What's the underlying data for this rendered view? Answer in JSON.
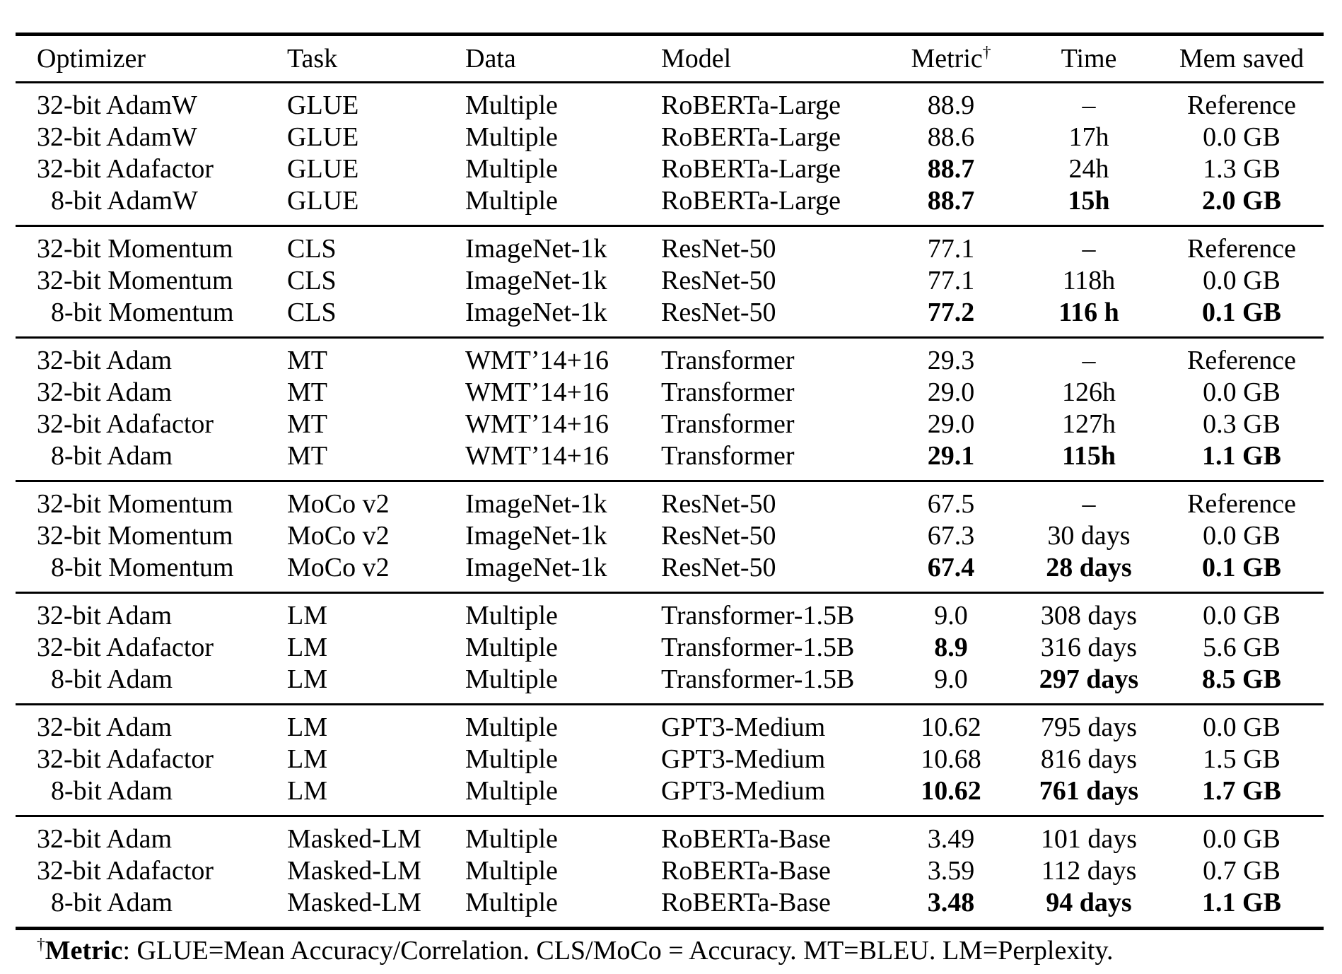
{
  "colors": {
    "text": "#000000",
    "background": "#ffffff",
    "rule": "#000000"
  },
  "table": {
    "columns": [
      {
        "label": "Optimizer"
      },
      {
        "label": "Task"
      },
      {
        "label": "Data"
      },
      {
        "label": "Model"
      },
      {
        "label": "Metric",
        "sup": "†"
      },
      {
        "label": "Time"
      },
      {
        "label": "Mem saved"
      }
    ],
    "groups": [
      {
        "rows": [
          {
            "cells": [
              "32-bit AdamW",
              "GLUE",
              "Multiple",
              "RoBERTa-Large",
              "88.9",
              "–",
              "Reference"
            ],
            "bold": []
          },
          {
            "cells": [
              "32-bit AdamW",
              "GLUE",
              "Multiple",
              "RoBERTa-Large",
              "88.6",
              "17h",
              "0.0 GB"
            ],
            "bold": []
          },
          {
            "cells": [
              "32-bit Adafactor",
              "GLUE",
              "Multiple",
              "RoBERTa-Large",
              "88.7",
              "24h",
              "1.3 GB"
            ],
            "bold": [
              4
            ]
          },
          {
            "cells": [
              "8-bit AdamW",
              "GLUE",
              "Multiple",
              "RoBERTa-Large",
              "88.7",
              "15h",
              "2.0 GB"
            ],
            "bold": [
              4,
              5,
              6
            ]
          }
        ]
      },
      {
        "rows": [
          {
            "cells": [
              "32-bit Momentum",
              "CLS",
              "ImageNet-1k",
              "ResNet-50",
              "77.1",
              "–",
              "Reference"
            ],
            "bold": []
          },
          {
            "cells": [
              "32-bit Momentum",
              "CLS",
              "ImageNet-1k",
              "ResNet-50",
              "77.1",
              "118h",
              "0.0 GB"
            ],
            "bold": []
          },
          {
            "cells": [
              "8-bit Momentum",
              "CLS",
              "ImageNet-1k",
              "ResNet-50",
              "77.2",
              "116 h",
              "0.1 GB"
            ],
            "bold": [
              4,
              5,
              6
            ]
          }
        ]
      },
      {
        "rows": [
          {
            "cells": [
              "32-bit Adam",
              "MT",
              "WMT’14+16",
              "Transformer",
              "29.3",
              "–",
              "Reference"
            ],
            "bold": []
          },
          {
            "cells": [
              "32-bit Adam",
              "MT",
              "WMT’14+16",
              "Transformer",
              "29.0",
              "126h",
              "0.0 GB"
            ],
            "bold": []
          },
          {
            "cells": [
              "32-bit Adafactor",
              "MT",
              "WMT’14+16",
              "Transformer",
              "29.0",
              "127h",
              "0.3 GB"
            ],
            "bold": []
          },
          {
            "cells": [
              "8-bit Adam",
              "MT",
              "WMT’14+16",
              "Transformer",
              "29.1",
              "115h",
              "1.1 GB"
            ],
            "bold": [
              4,
              5,
              6
            ]
          }
        ]
      },
      {
        "rows": [
          {
            "cells": [
              "32-bit Momentum",
              "MoCo v2",
              "ImageNet-1k",
              "ResNet-50",
              "67.5",
              "–",
              "Reference"
            ],
            "bold": []
          },
          {
            "cells": [
              "32-bit Momentum",
              "MoCo v2",
              "ImageNet-1k",
              "ResNet-50",
              "67.3",
              "30 days",
              "0.0 GB"
            ],
            "bold": []
          },
          {
            "cells": [
              "8-bit Momentum",
              "MoCo v2",
              "ImageNet-1k",
              "ResNet-50",
              "67.4",
              "28 days",
              "0.1 GB"
            ],
            "bold": [
              4,
              5,
              6
            ]
          }
        ]
      },
      {
        "rows": [
          {
            "cells": [
              "32-bit Adam",
              "LM",
              "Multiple",
              "Transformer-1.5B",
              "9.0",
              "308 days",
              "0.0 GB"
            ],
            "bold": []
          },
          {
            "cells": [
              "32-bit Adafactor",
              "LM",
              "Multiple",
              "Transformer-1.5B",
              "8.9",
              "316 days",
              "5.6 GB"
            ],
            "bold": [
              4
            ]
          },
          {
            "cells": [
              "8-bit Adam",
              "LM",
              "Multiple",
              "Transformer-1.5B",
              "9.0",
              "297 days",
              "8.5 GB"
            ],
            "bold": [
              5,
              6
            ]
          }
        ]
      },
      {
        "rows": [
          {
            "cells": [
              "32-bit Adam",
              "LM",
              "Multiple",
              "GPT3-Medium",
              "10.62",
              "795 days",
              "0.0 GB"
            ],
            "bold": []
          },
          {
            "cells": [
              "32-bit Adafactor",
              "LM",
              "Multiple",
              "GPT3-Medium",
              "10.68",
              "816 days",
              "1.5 GB"
            ],
            "bold": []
          },
          {
            "cells": [
              "8-bit Adam",
              "LM",
              "Multiple",
              "GPT3-Medium",
              "10.62",
              "761 days",
              "1.7 GB"
            ],
            "bold": [
              4,
              5,
              6
            ]
          }
        ]
      },
      {
        "rows": [
          {
            "cells": [
              "32-bit Adam",
              "Masked-LM",
              "Multiple",
              "RoBERTa-Base",
              "3.49",
              "101 days",
              "0.0 GB"
            ],
            "bold": []
          },
          {
            "cells": [
              "32-bit Adafactor",
              "Masked-LM",
              "Multiple",
              "RoBERTa-Base",
              "3.59",
              "112 days",
              "0.7 GB"
            ],
            "bold": []
          },
          {
            "cells": [
              "8-bit Adam",
              "Masked-LM",
              "Multiple",
              "RoBERTa-Base",
              "3.48",
              "94 days",
              "1.1 GB"
            ],
            "bold": [
              4,
              5,
              6
            ]
          }
        ]
      }
    ]
  },
  "footnote": {
    "dagger": "†",
    "label": "Metric",
    "text": ": GLUE=Mean Accuracy/Correlation. CLS/MoCo = Accuracy. MT=BLEU. LM=Perplexity."
  }
}
